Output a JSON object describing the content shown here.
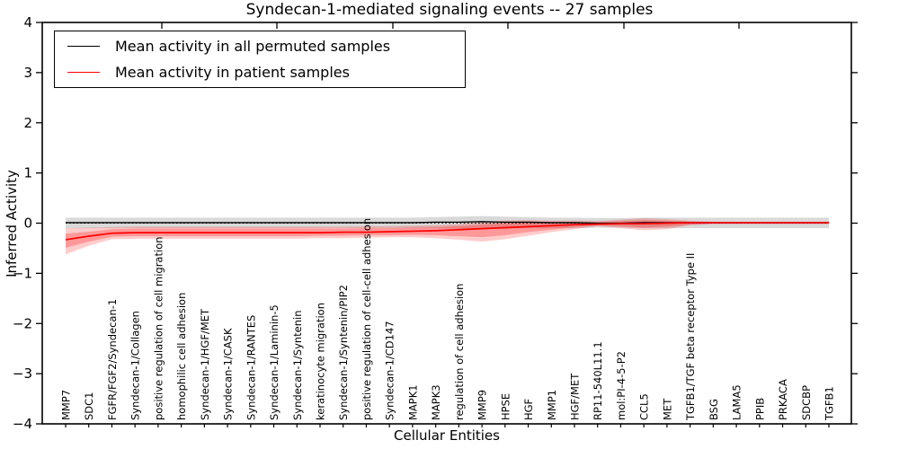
{
  "chart_data": {
    "type": "line",
    "title": "Syndecan-1-mediated signaling events -- 27 samples",
    "xlabel": "Cellular Entities",
    "ylabel": "Inferred Activity",
    "ylim": [
      -4,
      4
    ],
    "yticks": [
      4,
      3,
      2,
      1,
      0,
      -1,
      -2,
      -3,
      -4
    ],
    "ytick_labels": [
      "4",
      "3",
      "2",
      "1",
      "0",
      "−1",
      "−2",
      "−3",
      "−4"
    ],
    "grid": false,
    "legend_position": "upper left",
    "zero_line": true,
    "categories": [
      "MMP7",
      "SDC1",
      "FGFR/FGF2/Syndecan-1",
      "Syndecan-1/Collagen",
      "positive regulation of cell migration",
      "homophilic cell adhesion",
      "Syndecan-1/HGF/MET",
      "Syndecan-1/CASK",
      "Syndecan-1/RANTES",
      "Syndecan-1/Laminin-5",
      "Syndecan-1/Syntenin",
      "keratinocyte migration",
      "Syndecan-1/Syntenin/PIP2",
      "positive regulation of cell-cell adhesion",
      "Syndecan-1/CD147",
      "MAPK1",
      "MAPK3",
      "regulation of cell adhesion",
      "MMP9",
      "HPSE",
      "HGF",
      "MMP1",
      "HGF/MET",
      "RP11-540L11.1",
      "mol:PI-4-5-P2",
      "CCL5",
      "MET",
      "TGFB1/TGF beta receptor Type II",
      "BSG",
      "LAMA5",
      "PPIB",
      "PRKACA",
      "SDCBP",
      "TGFB1"
    ],
    "series": [
      {
        "name": "Mean activity in all permuted samples",
        "color": "#000000",
        "values": [
          0.01,
          0.01,
          0.01,
          0.01,
          0.01,
          0.01,
          0.01,
          0.01,
          0.01,
          0.01,
          0.01,
          0.01,
          0.01,
          0.01,
          0.01,
          0.01,
          0.02,
          0.02,
          0.03,
          0.02,
          0.02,
          0.01,
          0.01,
          0.0,
          0.0,
          0.01,
          0.01,
          0.01,
          0.01,
          0.01,
          0.01,
          0.01,
          0.01,
          0.01
        ]
      },
      {
        "name": "Mean activity in patient samples",
        "color": "#ff0000",
        "values": [
          -0.33,
          -0.26,
          -0.2,
          -0.19,
          -0.19,
          -0.19,
          -0.19,
          -0.19,
          -0.19,
          -0.19,
          -0.19,
          -0.19,
          -0.18,
          -0.18,
          -0.17,
          -0.16,
          -0.15,
          -0.13,
          -0.11,
          -0.09,
          -0.07,
          -0.05,
          -0.03,
          -0.02,
          -0.01,
          -0.01,
          0.0,
          0.01,
          0.01,
          0.01,
          0.01,
          0.01,
          0.01,
          0.01
        ]
      }
    ],
    "bands": [
      {
        "name": "permuted-samples-spread",
        "color": "#000000",
        "opacity": 0.15,
        "high": [
          0.11,
          0.11,
          0.11,
          0.11,
          0.11,
          0.11,
          0.11,
          0.11,
          0.11,
          0.11,
          0.11,
          0.11,
          0.11,
          0.11,
          0.11,
          0.11,
          0.12,
          0.13,
          0.14,
          0.13,
          0.12,
          0.11,
          0.11,
          0.1,
          0.1,
          0.11,
          0.11,
          0.11,
          0.11,
          0.11,
          0.11,
          0.11,
          0.11,
          0.11
        ],
        "low": [
          -0.1,
          -0.1,
          -0.1,
          -0.1,
          -0.1,
          -0.1,
          -0.1,
          -0.1,
          -0.1,
          -0.1,
          -0.1,
          -0.1,
          -0.1,
          -0.1,
          -0.1,
          -0.1,
          -0.1,
          -0.11,
          -0.12,
          -0.11,
          -0.1,
          -0.1,
          -0.1,
          -0.09,
          -0.09,
          -0.1,
          -0.1,
          -0.1,
          -0.1,
          -0.1,
          -0.1,
          -0.1,
          -0.1,
          -0.1
        ]
      },
      {
        "name": "patient-samples-spread-outer",
        "color": "#ff0000",
        "opacity": 0.2,
        "high": [
          -0.1,
          -0.09,
          -0.08,
          -0.07,
          -0.07,
          -0.07,
          -0.07,
          -0.07,
          -0.07,
          -0.07,
          -0.07,
          -0.07,
          -0.07,
          -0.06,
          -0.06,
          -0.05,
          -0.04,
          -0.02,
          0.02,
          0.05,
          0.06,
          0.05,
          0.05,
          0.04,
          0.07,
          0.1,
          0.08,
          0.05,
          0.03,
          0.03,
          0.03,
          0.03,
          0.03,
          0.03
        ],
        "low": [
          -0.62,
          -0.45,
          -0.32,
          -0.31,
          -0.31,
          -0.31,
          -0.31,
          -0.31,
          -0.31,
          -0.31,
          -0.31,
          -0.3,
          -0.3,
          -0.29,
          -0.28,
          -0.28,
          -0.3,
          -0.33,
          -0.37,
          -0.32,
          -0.25,
          -0.18,
          -0.12,
          -0.06,
          -0.1,
          -0.14,
          -0.12,
          -0.04,
          -0.02,
          -0.02,
          -0.02,
          -0.02,
          -0.02,
          -0.02
        ]
      },
      {
        "name": "patient-samples-spread-inner",
        "color": "#ff0000",
        "opacity": 0.25,
        "high": [
          -0.21,
          -0.17,
          -0.12,
          -0.11,
          -0.11,
          -0.11,
          -0.11,
          -0.11,
          -0.11,
          -0.11,
          -0.11,
          -0.11,
          -0.11,
          -0.1,
          -0.1,
          -0.09,
          -0.08,
          -0.06,
          -0.03,
          0.0,
          0.02,
          0.02,
          0.02,
          0.02,
          0.04,
          0.06,
          0.05,
          0.03,
          0.02,
          0.02,
          0.02,
          0.02,
          0.02,
          0.02
        ],
        "low": [
          -0.49,
          -0.37,
          -0.27,
          -0.26,
          -0.26,
          -0.26,
          -0.26,
          -0.26,
          -0.26,
          -0.26,
          -0.26,
          -0.25,
          -0.25,
          -0.24,
          -0.24,
          -0.23,
          -0.24,
          -0.26,
          -0.28,
          -0.24,
          -0.18,
          -0.13,
          -0.08,
          -0.04,
          -0.06,
          -0.09,
          -0.07,
          -0.03,
          -0.01,
          -0.01,
          -0.01,
          -0.01,
          -0.01,
          -0.01
        ]
      }
    ]
  }
}
